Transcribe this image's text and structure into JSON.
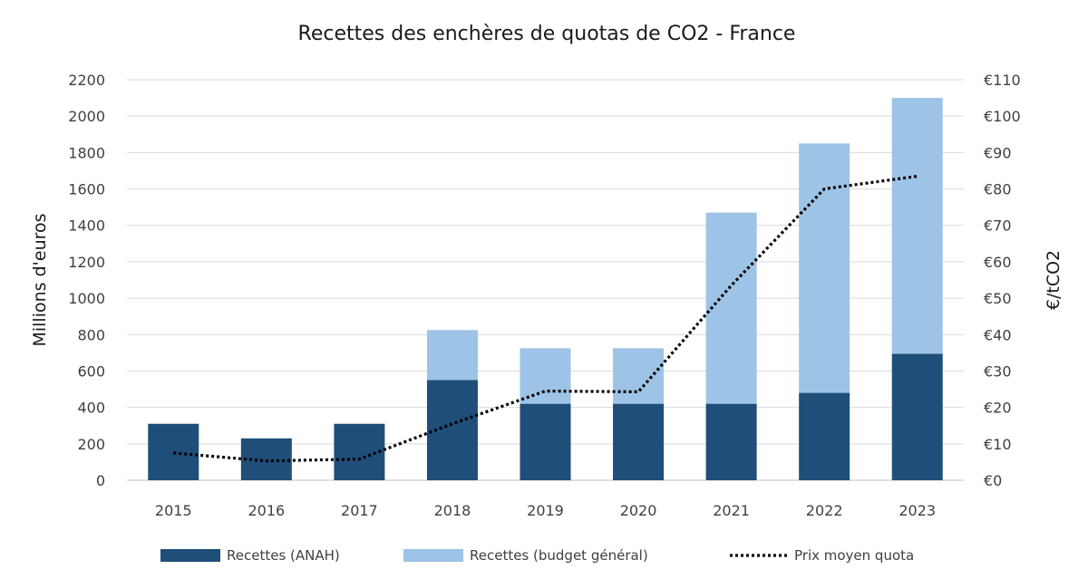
{
  "chart_data": {
    "type": "bar",
    "stacked": true,
    "title": "Recettes des enchères de quotas de CO2 - France",
    "ylabel": "Millions d'euros",
    "y2label": "€/tCO2",
    "categories": [
      "2015",
      "2016",
      "2017",
      "2018",
      "2019",
      "2020",
      "2021",
      "2022",
      "2023"
    ],
    "ylim": [
      0,
      2200
    ],
    "y2lim": [
      0,
      110
    ],
    "yticks": [
      "0",
      "200",
      "400",
      "600",
      "800",
      "1000",
      "1200",
      "1400",
      "1600",
      "1800",
      "2000",
      "2200"
    ],
    "y2ticks": [
      "€0",
      "€10",
      "€20",
      "€30",
      "€40",
      "€50",
      "€60",
      "€70",
      "€80",
      "€90",
      "€100",
      "€110"
    ],
    "grid": true,
    "legend_position": "bottom",
    "series": [
      {
        "name": "Recettes (ANAH)",
        "type": "bar",
        "axis": "left",
        "color": "#1f4e79",
        "values": [
          310,
          230,
          310,
          550,
          420,
          420,
          420,
          480,
          695
        ]
      },
      {
        "name": "Recettes (budget général)",
        "type": "bar",
        "axis": "left",
        "color": "#9dc3e6",
        "values": [
          0,
          0,
          0,
          275,
          305,
          305,
          1050,
          1370,
          1405
        ]
      },
      {
        "name": "Prix moyen quota",
        "type": "line",
        "style": "dotted",
        "axis": "right",
        "color": "#000000",
        "values": [
          7.5,
          5.3,
          5.8,
          15.5,
          24.5,
          24.3,
          53.5,
          80,
          83.5
        ]
      }
    ]
  }
}
